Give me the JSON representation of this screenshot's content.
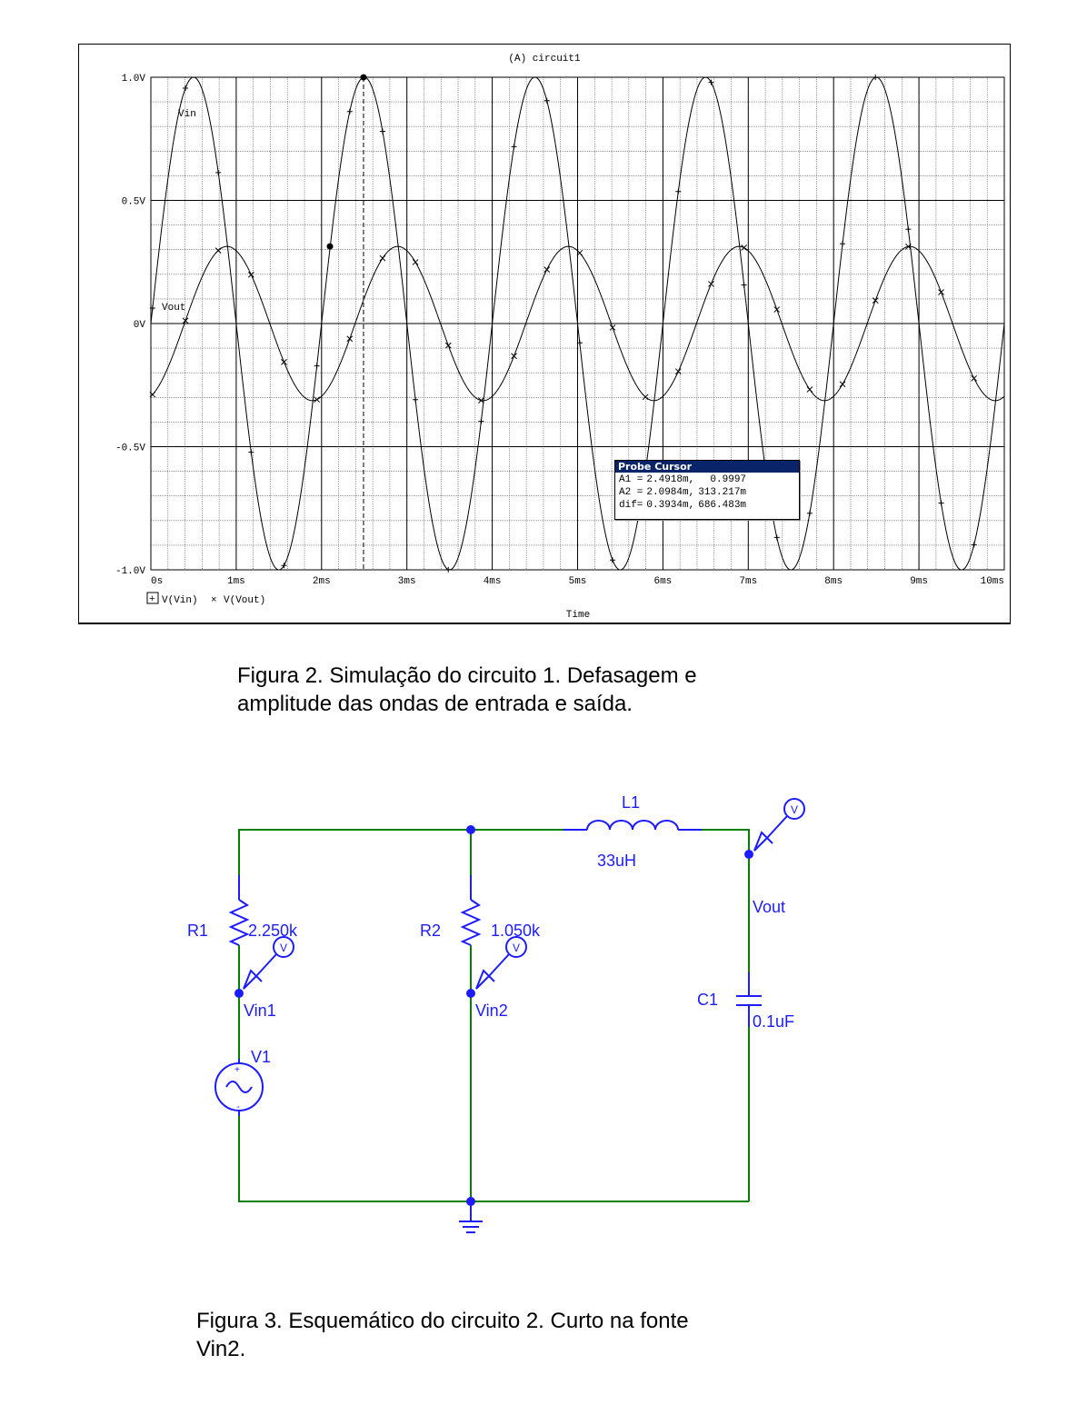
{
  "plot": {
    "title": "(A) circuit1",
    "legend_vin": "V(Vin)",
    "legend_vout": "V(Vout)",
    "legend_sep": "×",
    "xlabel": "Time",
    "trace_label_vin": "Vin",
    "trace_label_vout": "Vout",
    "probe": {
      "title": "Probe Cursor",
      "rows": [
        {
          "name": "A1 =",
          "x": "2.4918m,",
          "y": "0.9997"
        },
        {
          "name": "A2 =",
          "x": "2.0984m,",
          "y": "313.217m"
        },
        {
          "name": "dif=",
          "x": "0.3934m,",
          "y": "686.483m"
        }
      ]
    }
  },
  "chart_data": {
    "type": "line",
    "title": "(A) circuit1",
    "xlabel": "Time",
    "ylabel": "",
    "xlim": [
      0,
      10
    ],
    "ylim": [
      -1.0,
      1.0
    ],
    "x_unit": "ms",
    "x_ticks": [
      "0s",
      "1ms",
      "2ms",
      "3ms",
      "4ms",
      "5ms",
      "6ms",
      "7ms",
      "8ms",
      "9ms",
      "10ms"
    ],
    "x_tick_values": [
      0,
      1,
      2,
      3,
      4,
      5,
      6,
      7,
      8,
      9,
      10
    ],
    "y_ticks": [
      "1.0V",
      "0.5V",
      "0V",
      "-0.5V",
      "-1.0V"
    ],
    "y_tick_values": [
      1.0,
      0.5,
      0,
      -0.5,
      -1.0
    ],
    "grid": true,
    "series": [
      {
        "name": "V(Vin)",
        "marker": "+",
        "amplitude": 1.0,
        "frequency_khz": 0.5,
        "phase_deg": 0
      },
      {
        "name": "V(Vout)",
        "marker": "×",
        "amplitude": 0.313,
        "frequency_khz": 0.5,
        "phase_deg": -70.8
      }
    ],
    "cursors": [
      {
        "name": "A1",
        "x": 2.4918,
        "y": 0.9997
      },
      {
        "name": "A2",
        "x": 2.0984,
        "y": 0.313217
      }
    ]
  },
  "captions": {
    "fig2": "Figura 2. Simulação do circuito 1. Defasagem e amplitude das ondas de entrada e saída.",
    "fig2_line1": "Figura 2. Simulação do circuito 1. Defasagem e",
    "fig2_line2": "amplitude das ondas de entrada e saída.",
    "fig3_line1": "Figura 3. Esquemático do circuito 2. Curto na fonte",
    "fig3_line2": "Vin2."
  },
  "schematic": {
    "r1_name": "R1",
    "r1_value": "2.250k",
    "r2_name": "R2",
    "r2_value": "1.050k",
    "l1_name": "L1",
    "l1_value": "33uH",
    "c1_name": "C1",
    "c1_value": "0.1uF",
    "v1_name": "V1",
    "net_vin1": "Vin1",
    "net_vin2": "Vin2",
    "net_vout": "Vout",
    "probe_marker": "V",
    "plus": "+",
    "minus": "-",
    "wire_color": "#008000",
    "component_color": "#1c1cff",
    "value_color": "#1c1cff"
  }
}
